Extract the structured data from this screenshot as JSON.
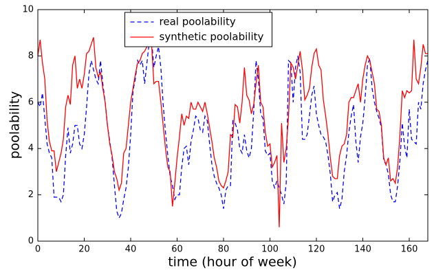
{
  "chart_data": {
    "type": "line",
    "xlabel": "time (hour of week)",
    "ylabel": "poolability",
    "x": [
      0,
      1,
      2,
      3,
      4,
      5,
      6,
      7,
      8,
      9,
      10,
      11,
      12,
      13,
      14,
      15,
      16,
      17,
      18,
      19,
      20,
      21,
      22,
      23,
      24,
      25,
      26,
      27,
      28,
      29,
      30,
      31,
      32,
      33,
      34,
      35,
      36,
      37,
      38,
      39,
      40,
      41,
      42,
      43,
      44,
      45,
      46,
      47,
      48,
      49,
      50,
      51,
      52,
      53,
      54,
      55,
      56,
      57,
      58,
      59,
      60,
      61,
      62,
      63,
      64,
      65,
      66,
      67,
      68,
      69,
      70,
      71,
      72,
      73,
      74,
      75,
      76,
      77,
      78,
      79,
      80,
      81,
      82,
      83,
      84,
      85,
      86,
      87,
      88,
      89,
      90,
      91,
      92,
      93,
      94,
      95,
      96,
      97,
      98,
      99,
      100,
      101,
      102,
      103,
      104,
      105,
      106,
      107,
      108,
      109,
      110,
      111,
      112,
      113,
      114,
      115,
      116,
      117,
      118,
      119,
      120,
      121,
      122,
      123,
      124,
      125,
      126,
      127,
      128,
      129,
      130,
      131,
      132,
      133,
      134,
      135,
      136,
      137,
      138,
      139,
      140,
      141,
      142,
      143,
      144,
      145,
      146,
      147,
      148,
      149,
      150,
      151,
      152,
      153,
      154,
      155,
      156,
      157,
      158,
      159,
      160,
      161,
      162,
      163,
      164,
      165,
      166,
      167,
      168
    ],
    "series": [
      {
        "name": "real poolability",
        "color": "#0000ff",
        "dash": true,
        "values": [
          6.0,
          5.8,
          6.4,
          5.3,
          4.2,
          3.8,
          3.6,
          1.9,
          1.9,
          1.9,
          1.7,
          2.0,
          3.7,
          4.9,
          3.8,
          4.2,
          5.0,
          5.0,
          4.2,
          4.0,
          4.6,
          5.8,
          7.2,
          7.8,
          7.4,
          7.0,
          6.8,
          7.8,
          6.8,
          6.0,
          5.0,
          4.3,
          3.6,
          2.4,
          1.3,
          1.0,
          1.2,
          1.8,
          2.3,
          3.2,
          4.6,
          6.5,
          7.0,
          7.8,
          7.6,
          7.8,
          6.8,
          7.7,
          8.6,
          8.7,
          7.5,
          8.0,
          8.4,
          7.5,
          5.9,
          4.7,
          3.7,
          2.8,
          2.4,
          1.8,
          2.0,
          2.0,
          3.2,
          4.0,
          4.1,
          3.3,
          4.3,
          4.8,
          5.4,
          5.3,
          4.8,
          4.7,
          5.4,
          5.2,
          4.2,
          3.3,
          2.8,
          2.5,
          2.3,
          2.0,
          1.4,
          2.2,
          2.4,
          2.4,
          5.2,
          5.1,
          4.8,
          4.0,
          3.8,
          4.6,
          3.9,
          3.6,
          4.0,
          5.6,
          7.8,
          7.0,
          5.5,
          5.3,
          3.9,
          3.7,
          3.8,
          2.6,
          2.3,
          2.6,
          2.3,
          2.0,
          1.6,
          2.5,
          7.8,
          7.7,
          6.0,
          7.5,
          8.0,
          7.3,
          4.4,
          4.4,
          4.6,
          5.4,
          6.3,
          6.7,
          5.5,
          5.0,
          4.6,
          4.5,
          4.3,
          3.7,
          2.9,
          1.7,
          2.0,
          2.1,
          1.4,
          1.8,
          3.0,
          3.7,
          4.7,
          5.4,
          5.9,
          4.3,
          3.4,
          4.5,
          5.1,
          6.2,
          7.6,
          7.9,
          6.6,
          6.0,
          5.6,
          5.3,
          4.9,
          3.5,
          3.3,
          2.9,
          2.0,
          1.7,
          1.7,
          2.4,
          3.5,
          5.1,
          4.1,
          3.6,
          5.7,
          4.4,
          4.3,
          4.2,
          6.0,
          5.7,
          6.8,
          7.4,
          7.8
        ]
      },
      {
        "name": "synthetic poolability",
        "color": "#ff0000",
        "dash": false,
        "values": [
          8.0,
          8.7,
          7.7,
          7.0,
          5.2,
          4.3,
          3.9,
          3.9,
          3.0,
          3.4,
          3.8,
          4.4,
          5.8,
          6.3,
          5.9,
          7.6,
          8.0,
          6.6,
          7.0,
          6.6,
          7.2,
          8.1,
          8.2,
          8.5,
          8.8,
          7.5,
          7.1,
          7.3,
          6.6,
          6.0,
          5.0,
          4.2,
          3.7,
          3.0,
          2.7,
          2.2,
          2.5,
          3.8,
          4.0,
          5.0,
          6.0,
          6.6,
          7.2,
          7.7,
          7.8,
          8.1,
          8.2,
          8.4,
          9.0,
          8.5,
          6.8,
          6.9,
          6.9,
          6.0,
          5.0,
          4.0,
          3.2,
          3.0,
          1.5,
          2.5,
          3.6,
          4.5,
          5.5,
          5.0,
          5.4,
          5.3,
          6.0,
          5.7,
          5.7,
          6.0,
          5.8,
          5.6,
          6.0,
          5.5,
          4.9,
          4.3,
          3.6,
          3.2,
          2.6,
          2.4,
          2.3,
          2.6,
          3.0,
          4.6,
          4.5,
          5.9,
          5.8,
          5.1,
          6.0,
          7.5,
          6.3,
          6.1,
          5.5,
          5.9,
          6.8,
          7.6,
          6.0,
          5.8,
          4.7,
          4.1,
          4.2,
          3.2,
          3.4,
          3.7,
          0.6,
          5.1,
          3.4,
          4.0,
          5.4,
          7.7,
          7.5,
          7.0,
          7.6,
          8.2,
          7.4,
          6.1,
          6.3,
          6.6,
          7.5,
          8.1,
          8.3,
          7.6,
          7.4,
          6.1,
          5.4,
          4.6,
          3.6,
          2.8,
          2.7,
          2.7,
          3.7,
          4.1,
          4.2,
          4.6,
          6.0,
          6.2,
          6.2,
          6.5,
          6.8,
          6.0,
          7.0,
          7.6,
          8.0,
          7.8,
          7.3,
          6.8,
          5.7,
          5.6,
          5.0,
          3.6,
          3.3,
          3.6,
          2.6,
          2.7,
          2.5,
          3.2,
          4.6,
          6.5,
          6.2,
          6.5,
          6.4,
          6.5,
          8.7,
          7.0,
          6.8,
          7.5,
          8.5,
          8.1,
          8.1
        ]
      }
    ],
    "xlim": [
      0,
      168
    ],
    "xticks": [
      0,
      20,
      40,
      60,
      80,
      100,
      120,
      140,
      160
    ],
    "ylim": [
      0,
      10
    ],
    "yticks": [
      0,
      2,
      4,
      6,
      8,
      10
    ],
    "legend": "upper center"
  }
}
